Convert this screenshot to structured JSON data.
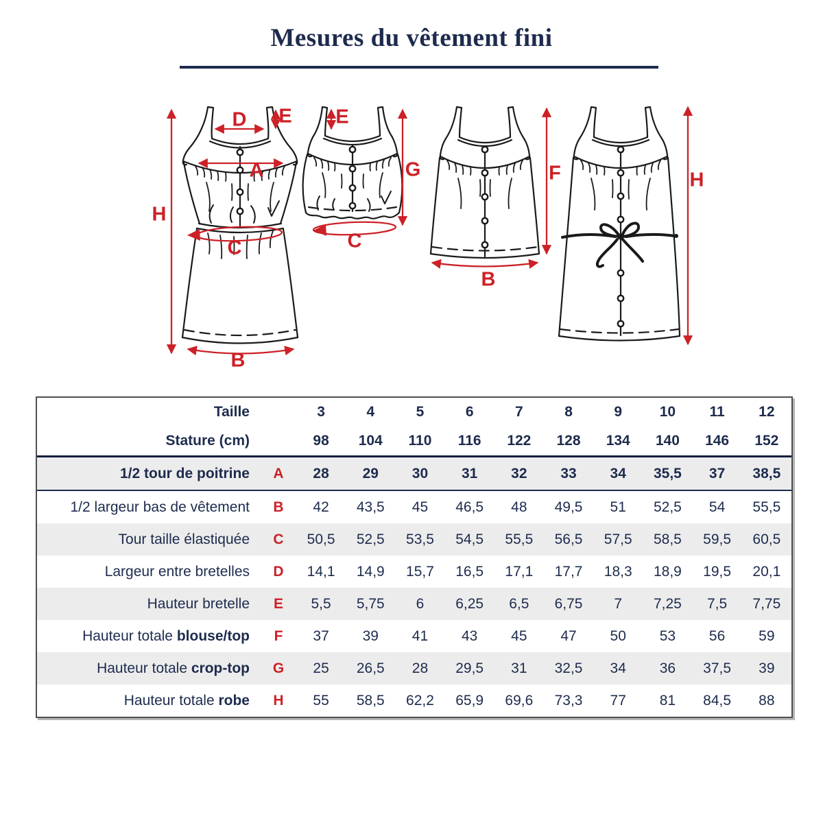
{
  "title": "Mesures du vêtement fini",
  "colors": {
    "navy": "#1d2b4d",
    "red": "#cc2127",
    "ink": "#1a1a1a",
    "row_shade": "#ececec"
  },
  "diagram": {
    "labels": [
      {
        "letter": "D"
      },
      {
        "letter": "E"
      },
      {
        "letter": "A"
      },
      {
        "letter": "H"
      },
      {
        "letter": "C"
      },
      {
        "letter": "B"
      },
      {
        "letter": "E"
      },
      {
        "letter": "G"
      },
      {
        "letter": "C"
      },
      {
        "letter": "F"
      },
      {
        "letter": "B"
      },
      {
        "letter": "H"
      }
    ]
  },
  "table": {
    "header_rows": [
      {
        "label": "Taille",
        "letter": "",
        "values": [
          "3",
          "4",
          "5",
          "6",
          "7",
          "8",
          "9",
          "10",
          "11",
          "12"
        ]
      },
      {
        "label": "Stature (cm)",
        "letter": "",
        "values": [
          "98",
          "104",
          "110",
          "116",
          "122",
          "128",
          "134",
          "140",
          "146",
          "152"
        ]
      }
    ],
    "rows": [
      {
        "label": "1/2 tour de poitrine",
        "label_bold": "",
        "letter": "A",
        "emphasis": true,
        "shaded": true,
        "values": [
          "28",
          "29",
          "30",
          "31",
          "32",
          "33",
          "34",
          "35,5",
          "37",
          "38,5"
        ]
      },
      {
        "label": "1/2 largeur bas de vêtement",
        "label_bold": "",
        "letter": "B",
        "emphasis": false,
        "shaded": false,
        "values": [
          "42",
          "43,5",
          "45",
          "46,5",
          "48",
          "49,5",
          "51",
          "52,5",
          "54",
          "55,5"
        ]
      },
      {
        "label": "Tour taille élastiquée",
        "label_bold": "",
        "letter": "C",
        "emphasis": false,
        "shaded": true,
        "values": [
          "50,5",
          "52,5",
          "53,5",
          "54,5",
          "55,5",
          "56,5",
          "57,5",
          "58,5",
          "59,5",
          "60,5"
        ]
      },
      {
        "label": "Largeur entre bretelles",
        "label_bold": "",
        "letter": "D",
        "emphasis": false,
        "shaded": false,
        "values": [
          "14,1",
          "14,9",
          "15,7",
          "16,5",
          "17,1",
          "17,7",
          "18,3",
          "18,9",
          "19,5",
          "20,1"
        ]
      },
      {
        "label": "Hauteur bretelle",
        "label_bold": "",
        "letter": "E",
        "emphasis": false,
        "shaded": true,
        "values": [
          "5,5",
          "5,75",
          "6",
          "6,25",
          "6,5",
          "6,75",
          "7",
          "7,25",
          "7,5",
          "7,75"
        ]
      },
      {
        "label": "Hauteur totale",
        "label_bold": "blouse/top",
        "letter": "F",
        "emphasis": false,
        "shaded": false,
        "values": [
          "37",
          "39",
          "41",
          "43",
          "45",
          "47",
          "50",
          "53",
          "56",
          "59"
        ]
      },
      {
        "label": "Hauteur totale",
        "label_bold": "crop-top",
        "letter": "G",
        "emphasis": false,
        "shaded": true,
        "values": [
          "25",
          "26,5",
          "28",
          "29,5",
          "31",
          "32,5",
          "34",
          "36",
          "37,5",
          "39"
        ]
      },
      {
        "label": "Hauteur totale",
        "label_bold": "robe",
        "letter": "H",
        "emphasis": false,
        "shaded": false,
        "values": [
          "55",
          "58,5",
          "62,2",
          "65,9",
          "69,6",
          "73,3",
          "77",
          "81",
          "84,5",
          "88"
        ]
      }
    ]
  }
}
